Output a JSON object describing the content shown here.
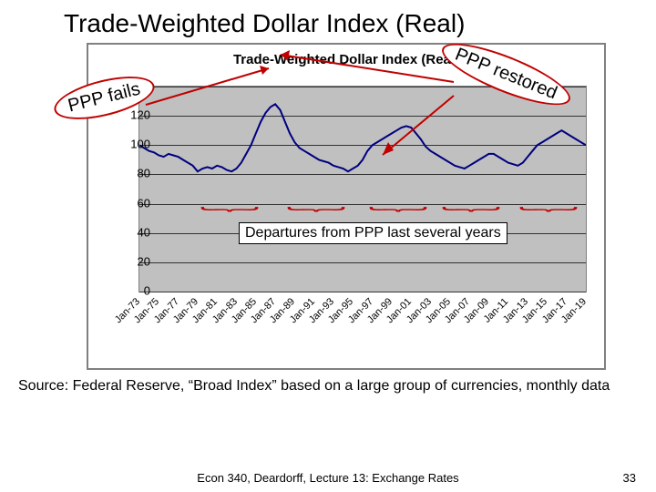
{
  "title": "Trade-Weighted Dollar Index (Real)",
  "chart": {
    "inner_title": "Trade-Weighted Dollar Index (Real)",
    "type": "line",
    "ylim": [
      0,
      140
    ],
    "ytick_step": 20,
    "yticks": [
      0,
      20,
      40,
      60,
      80,
      100,
      120,
      140
    ],
    "xticks": [
      "Jan-73",
      "Jan-75",
      "Jan-77",
      "Jan-79",
      "Jan-81",
      "Jan-83",
      "Jan-85",
      "Jan-87",
      "Jan-89",
      "Jan-91",
      "Jan-93",
      "Jan-95",
      "Jan-97",
      "Jan-99",
      "Jan-01",
      "Jan-03",
      "Jan-05",
      "Jan-07",
      "Jan-09",
      "Jan-11",
      "Jan-13",
      "Jan-15",
      "Jan-17",
      "Jan-19"
    ],
    "series_color": "#000080",
    "series_values": [
      100,
      98,
      96,
      95,
      93,
      92,
      94,
      93,
      92,
      90,
      88,
      86,
      82,
      84,
      85,
      84,
      86,
      85,
      83,
      82,
      84,
      88,
      94,
      100,
      108,
      116,
      122,
      126,
      128,
      124,
      116,
      108,
      102,
      98,
      96,
      94,
      92,
      90,
      89,
      88,
      86,
      85,
      84,
      82,
      84,
      86,
      90,
      96,
      100,
      102,
      104,
      106,
      108,
      110,
      112,
      113,
      112,
      108,
      104,
      99,
      96,
      94,
      92,
      90,
      88,
      86,
      85,
      84,
      86,
      88,
      90,
      92,
      94,
      94,
      92,
      90,
      88,
      87,
      86,
      88,
      92,
      96,
      100,
      102,
      104,
      106,
      108,
      110,
      108,
      106,
      104,
      102,
      100
    ],
    "background_color": "#c0c0c0",
    "grid_color": "#333333",
    "departures_label": "Departures from PPP last several years",
    "brace_color": "#c00000"
  },
  "callouts": {
    "left": "PPP fails",
    "right": "PPP restored",
    "border_color": "#c00000"
  },
  "source": "Source:  Federal Reserve, “Broad Index” based on a large group of currencies, monthly data",
  "footer": {
    "center": "Econ 340, Deardorff, Lecture 13: Exchange Rates",
    "page": "33"
  }
}
